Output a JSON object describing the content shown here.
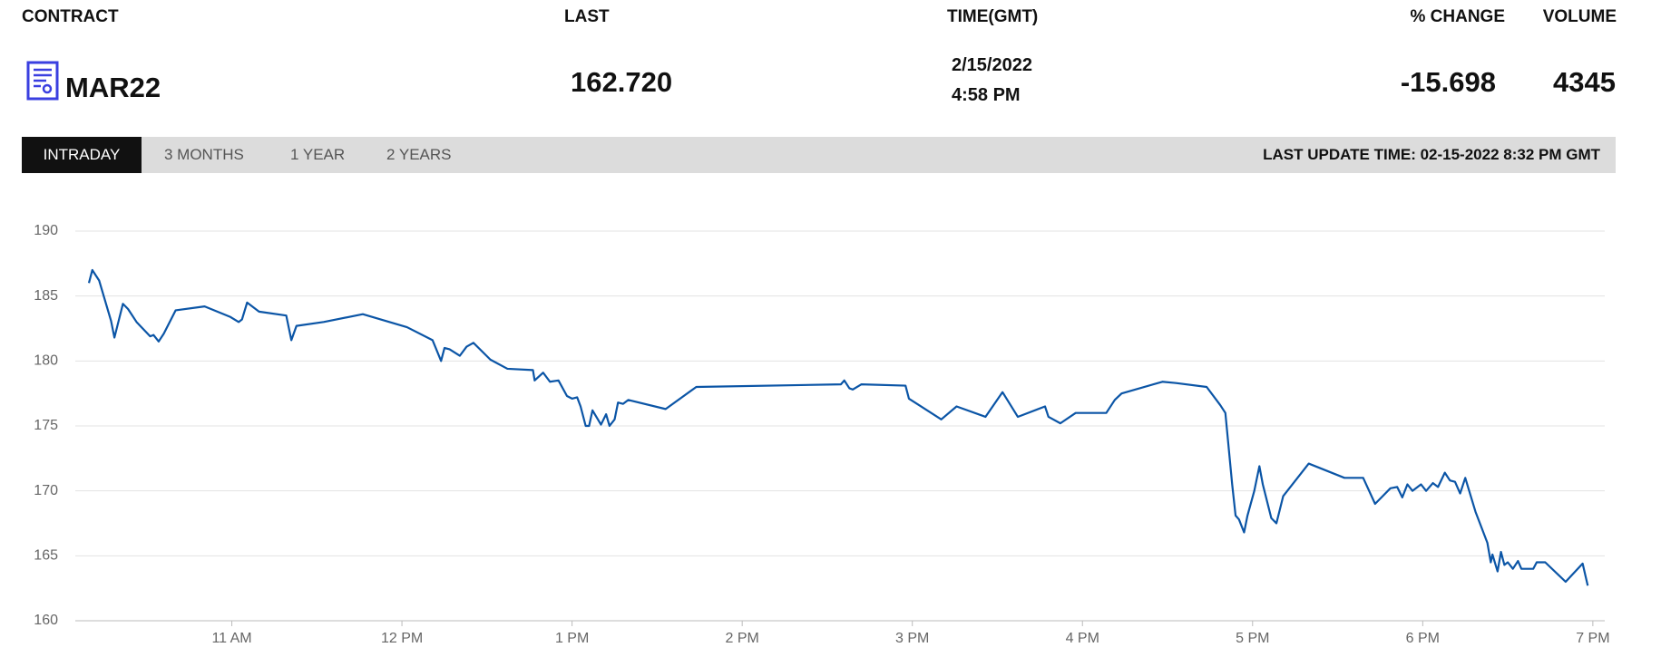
{
  "header": {
    "labels": [
      "CONTRACT",
      "LAST",
      "TIME(GMT)",
      "% CHANGE",
      "VOLUME"
    ],
    "contract": "MAR22",
    "last": "162.720",
    "date": "2/15/2022",
    "time": "4:58 PM",
    "change": "-15.698",
    "volume": "4345"
  },
  "tabs": {
    "items": [
      "INTRADAY",
      "3 MONTHS",
      "1 YEAR",
      "2 YEARS"
    ],
    "active": 0
  },
  "last_update": "LAST UPDATE TIME: 02-15-2022 8:32 PM GMT",
  "chart_data": {
    "type": "line",
    "x": [
      10.16,
      10.18,
      10.22,
      10.29,
      10.31,
      10.36,
      10.39,
      10.44,
      10.52,
      10.54,
      10.57,
      10.6,
      10.67,
      10.84,
      10.99,
      11.04,
      11.06,
      11.09,
      11.16,
      11.32,
      11.35,
      11.38,
      11.54,
      11.77,
      12.03,
      12.18,
      12.23,
      12.25,
      12.28,
      12.34,
      12.38,
      12.42,
      12.52,
      12.62,
      12.77,
      12.78,
      12.83,
      12.87,
      12.92,
      12.97,
      13.0,
      13.03,
      13.05,
      13.08,
      13.1,
      13.12,
      13.17,
      13.2,
      13.22,
      13.25,
      13.27,
      13.3,
      13.33,
      13.55,
      13.73,
      14.58,
      14.6,
      14.63,
      14.65,
      14.7,
      14.96,
      14.98,
      15.17,
      15.26,
      15.43,
      15.53,
      15.62,
      15.78,
      15.8,
      15.87,
      15.96,
      16.14,
      16.19,
      16.23,
      16.47,
      16.55,
      16.73,
      16.81,
      16.84,
      16.88,
      16.9,
      16.92,
      16.95,
      16.97,
      17.01,
      17.04,
      17.06,
      17.11,
      17.14,
      17.18,
      17.33,
      17.54,
      17.65,
      17.72,
      17.81,
      17.85,
      17.88,
      17.91,
      17.94,
      17.99,
      18.02,
      18.06,
      18.09,
      18.13,
      18.16,
      18.19,
      18.22,
      18.25,
      18.31,
      18.38,
      18.4,
      18.41,
      18.44,
      18.46,
      18.48,
      18.5,
      18.53,
      18.56,
      18.58,
      18.65,
      18.67,
      18.72,
      18.84,
      18.94,
      18.97
    ],
    "series": [
      {
        "color": "#0b55a6",
        "values": [
          186.0,
          187.0,
          186.2,
          183.1,
          181.8,
          184.4,
          184.0,
          183.0,
          181.9,
          182.0,
          181.5,
          182.1,
          183.9,
          184.2,
          183.4,
          183.0,
          183.2,
          184.5,
          183.8,
          183.5,
          181.6,
          182.7,
          183.0,
          183.6,
          182.6,
          181.6,
          180.0,
          181.0,
          180.9,
          180.4,
          181.1,
          181.4,
          180.1,
          179.4,
          179.3,
          178.5,
          179.1,
          178.4,
          178.5,
          177.3,
          177.1,
          177.2,
          176.5,
          175.0,
          175.0,
          176.2,
          175.1,
          175.9,
          175.0,
          175.5,
          176.8,
          176.7,
          177.0,
          176.3,
          178.0,
          178.2,
          178.5,
          177.9,
          177.8,
          178.2,
          178.1,
          177.1,
          175.5,
          176.5,
          175.7,
          177.6,
          175.7,
          176.5,
          175.7,
          175.2,
          176.0,
          176.0,
          177.0,
          177.5,
          178.4,
          178.3,
          178.0,
          176.6,
          176.0,
          170.5,
          168.1,
          167.8,
          166.8,
          168.1,
          170.0,
          171.9,
          170.5,
          167.9,
          167.5,
          169.6,
          172.1,
          171.0,
          171.0,
          169.0,
          170.2,
          170.3,
          169.5,
          170.5,
          170.0,
          170.5,
          170.0,
          170.6,
          170.3,
          171.4,
          170.8,
          170.7,
          169.8,
          171.0,
          168.4,
          166.0,
          164.5,
          165.1,
          163.8,
          165.3,
          164.3,
          164.5,
          164.0,
          164.6,
          164.0,
          164.0,
          164.5,
          164.5,
          163.0,
          164.4,
          162.7
        ]
      }
    ],
    "xlim": [
      10.08,
      19.07
    ],
    "xticks": [
      {
        "value": 11,
        "label": "11 AM"
      },
      {
        "value": 12,
        "label": "12 PM"
      },
      {
        "value": 13,
        "label": "1 PM"
      },
      {
        "value": 14,
        "label": "2 PM"
      },
      {
        "value": 15,
        "label": "3 PM"
      },
      {
        "value": 16,
        "label": "4 PM"
      },
      {
        "value": 17,
        "label": "5 PM"
      },
      {
        "value": 18,
        "label": "6 PM"
      },
      {
        "value": 19,
        "label": "7 PM"
      }
    ],
    "ylim": [
      160,
      190
    ],
    "yticks": [
      160,
      165,
      170,
      175,
      180,
      185,
      190
    ],
    "grid": true
  }
}
